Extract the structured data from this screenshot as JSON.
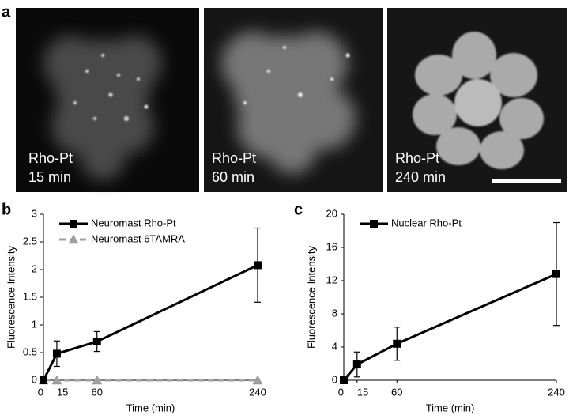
{
  "panel_labels": [
    "a",
    "b",
    "c"
  ],
  "images": [
    {
      "label": "Rho-Pt",
      "time": "15 min"
    },
    {
      "label": "Rho-Pt",
      "time": "60 min"
    },
    {
      "label": "Rho-Pt",
      "time": "240 min"
    }
  ],
  "chart_data": [
    {
      "type": "line",
      "ylabel": "Fluorescence Intensity",
      "xlabel": "Time (min)",
      "x": [
        0,
        15,
        60,
        240
      ],
      "xlim": [
        0,
        240
      ],
      "xticks": [
        0,
        15,
        60,
        240
      ],
      "ylim": [
        0,
        3
      ],
      "yticks": [
        0,
        0.5,
        1,
        1.5,
        2,
        2.5,
        3
      ],
      "legend": "top-left",
      "series": [
        {
          "name": "Neuromast Rho-Pt",
          "color": "#000000",
          "marker": "square",
          "line_style": "solid",
          "values": [
            0,
            0.48,
            0.7,
            2.08
          ],
          "errors": [
            0,
            0.23,
            0.18,
            0.67
          ]
        },
        {
          "name": "Neuromast 6TAMRA",
          "color": "#a0a0a0",
          "marker": "triangle",
          "line_style": "dashed",
          "values": [
            0,
            0,
            0,
            0
          ],
          "errors": [
            0,
            0,
            0,
            0
          ]
        }
      ]
    },
    {
      "type": "line",
      "ylabel": "Fluorescence Intensity",
      "xlabel": "Time (min)",
      "x": [
        0,
        15,
        60,
        240
      ],
      "xlim": [
        0,
        240
      ],
      "xticks": [
        0,
        15,
        60,
        240
      ],
      "ylim": [
        0,
        20
      ],
      "yticks": [
        0,
        4,
        8,
        12,
        16,
        20
      ],
      "legend": "top-left",
      "series": [
        {
          "name": "Nuclear Rho-Pt",
          "color": "#000000",
          "marker": "square",
          "line_style": "solid",
          "values": [
            0,
            1.9,
            4.4,
            12.8
          ],
          "errors": [
            0,
            1.5,
            2.0,
            6.2
          ]
        }
      ]
    }
  ]
}
